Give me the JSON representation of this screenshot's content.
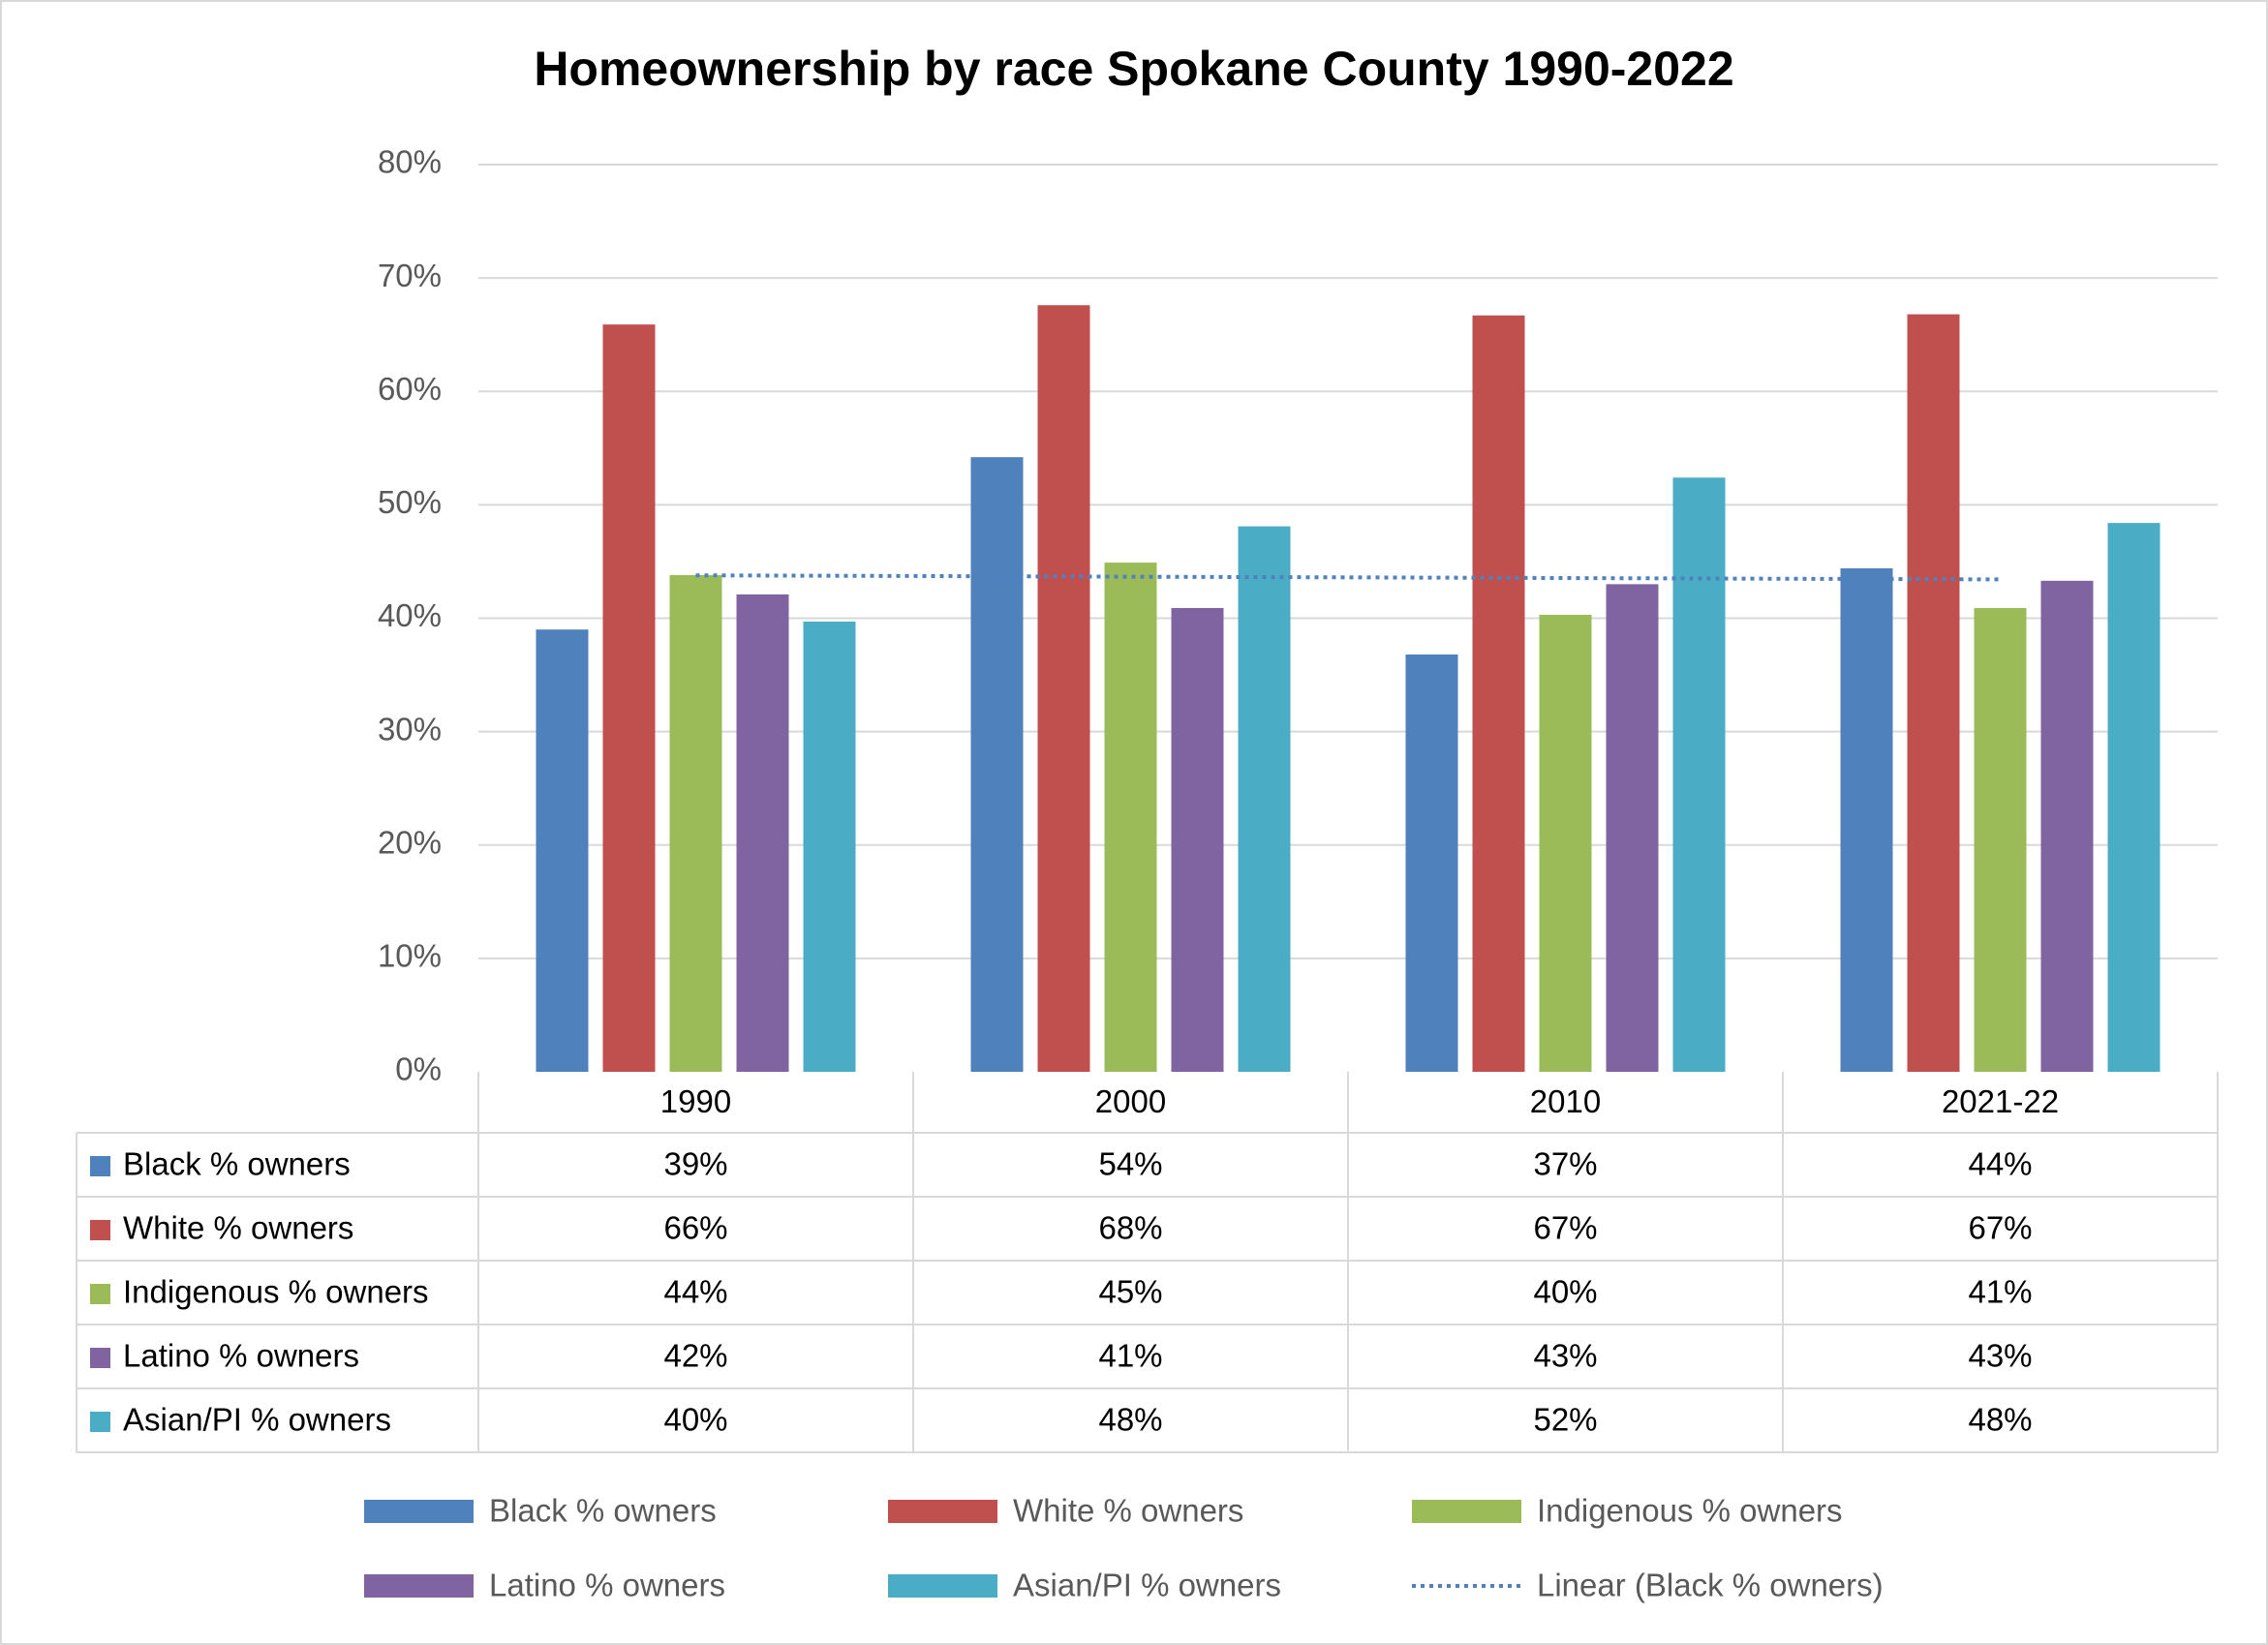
{
  "chart_data": {
    "type": "bar",
    "title": "Homeownership by race  Spokane County 1990-2022",
    "categories": [
      "1990",
      "2000",
      "2010",
      "2021-22"
    ],
    "series": [
      {
        "name": "Black % owners",
        "color": "#4f81bd",
        "values": [
          39.0,
          54.2,
          36.8,
          44.4
        ],
        "value_labels": [
          "39%",
          "54%",
          "37%",
          "44%"
        ]
      },
      {
        "name": "White % owners",
        "color": "#c0504d",
        "values": [
          65.9,
          67.6,
          66.7,
          66.8
        ],
        "value_labels": [
          "66%",
          "68%",
          "67%",
          "67%"
        ]
      },
      {
        "name": "Indigenous % owners",
        "color": "#9bbb59",
        "values": [
          43.8,
          44.9,
          40.3,
          40.9
        ],
        "value_labels": [
          "44%",
          "45%",
          "40%",
          "41%"
        ]
      },
      {
        "name": "Latino % owners",
        "color": "#8064a2",
        "values": [
          42.1,
          40.9,
          43.0,
          43.3
        ],
        "value_labels": [
          "42%",
          "41%",
          "43%",
          "43%"
        ]
      },
      {
        "name": "Asian/PI % owners",
        "color": "#4bacc6",
        "values": [
          39.7,
          48.1,
          52.4,
          48.4
        ],
        "value_labels": [
          "40%",
          "48%",
          "52%",
          "48%"
        ]
      }
    ],
    "trendline": {
      "type": "linear",
      "series": 0,
      "label": "Linear (Black % owners)",
      "color": "#4f81bd"
    },
    "ylim": [
      0,
      80
    ],
    "yticks": [
      {
        "value": 0,
        "label": "0%"
      },
      {
        "value": 10,
        "label": "10%"
      },
      {
        "value": 20,
        "label": "20%"
      },
      {
        "value": 30,
        "label": "30%"
      },
      {
        "value": 40,
        "label": "40%"
      },
      {
        "value": 50,
        "label": "50%"
      },
      {
        "value": 60,
        "label": "60%"
      },
      {
        "value": 70,
        "label": "70%"
      },
      {
        "value": 80,
        "label": "80%"
      }
    ],
    "grid": true,
    "data_table": true
  }
}
